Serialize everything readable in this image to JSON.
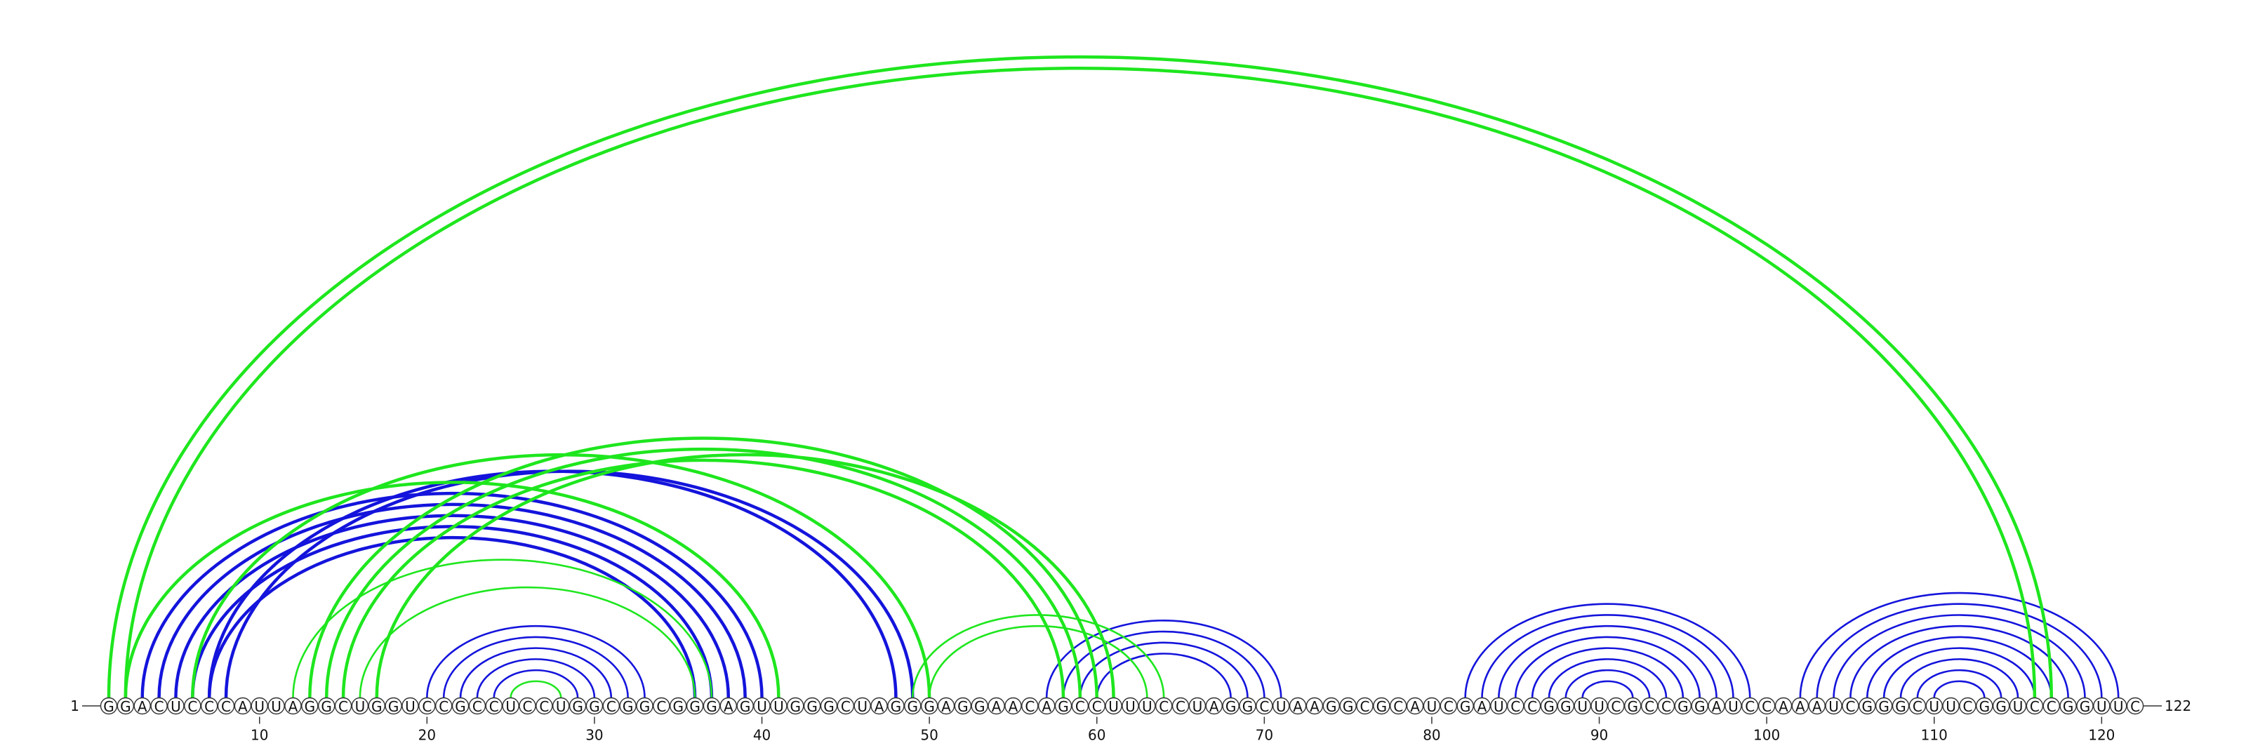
{
  "sequence": [
    "G",
    "G",
    "A",
    "C",
    "U",
    "C",
    "C",
    "C",
    "A",
    "U",
    "U",
    "A",
    "G",
    "G",
    "C",
    "U",
    "G",
    "G",
    "U",
    "C",
    "C",
    "G",
    "C",
    "C",
    "U",
    "C",
    "C",
    "U",
    "G",
    "G",
    "C",
    "G",
    "G",
    "C",
    "G",
    "G",
    "G",
    "A",
    "G",
    "U",
    "U",
    "G",
    "G",
    "G",
    "C",
    "U",
    "A",
    "G",
    "G",
    "G",
    "A",
    "G",
    "G",
    "A",
    "A",
    "C",
    "A",
    "G",
    "C",
    "C",
    "U",
    "U",
    "U",
    "C",
    "C",
    "U",
    "A",
    "G",
    "G",
    "C",
    "U",
    "A",
    "A",
    "G",
    "G",
    "C",
    "G",
    "C",
    "A",
    "U",
    "C",
    "G",
    "A",
    "U",
    "C",
    "C",
    "G",
    "G",
    "U",
    "U",
    "C",
    "G",
    "C",
    "C",
    "G",
    "G",
    "A",
    "U",
    "C",
    "C",
    "A",
    "A",
    "A",
    "U",
    "C",
    "G",
    "G",
    "G",
    "C",
    "U",
    "U",
    "C",
    "G",
    "G",
    "U",
    "C",
    "C",
    "G",
    "G",
    "U",
    "U",
    "C"
  ],
  "start": 1,
  "end": 122,
  "ticks": [
    10,
    20,
    30,
    40,
    50,
    60,
    70,
    80,
    90,
    100,
    110,
    120
  ],
  "arcs": [
    {
      "color": "#1414dc",
      "pairs": [
        [
          3,
          40
        ],
        [
          4,
          39
        ],
        [
          5,
          38
        ],
        [
          6,
          37
        ],
        [
          7,
          36
        ],
        [
          7,
          48
        ],
        [
          8,
          49
        ],
        [
          20,
          33
        ],
        [
          21,
          32
        ],
        [
          22,
          31
        ],
        [
          23,
          30
        ],
        [
          24,
          29
        ],
        [
          57,
          71
        ],
        [
          58,
          70
        ],
        [
          59,
          69
        ],
        [
          60,
          68
        ],
        [
          82,
          99
        ],
        [
          83,
          98
        ],
        [
          84,
          97
        ],
        [
          85,
          96
        ],
        [
          86,
          95
        ],
        [
          87,
          94
        ],
        [
          88,
          93
        ],
        [
          89,
          92
        ],
        [
          102,
          121
        ],
        [
          103,
          120
        ],
        [
          104,
          119
        ],
        [
          105,
          118
        ],
        [
          106,
          117
        ],
        [
          107,
          116
        ],
        [
          108,
          115
        ],
        [
          109,
          114
        ],
        [
          110,
          113
        ]
      ]
    },
    {
      "color": "#1ee61e",
      "pairs": [
        [
          1,
          117
        ],
        [
          2,
          116
        ],
        [
          2,
          41
        ],
        [
          6,
          50
        ],
        [
          12,
          37
        ],
        [
          16,
          36
        ],
        [
          13,
          60
        ],
        [
          14,
          59
        ],
        [
          15,
          58
        ],
        [
          17,
          61
        ],
        [
          49,
          64
        ],
        [
          50,
          63
        ],
        [
          25,
          28
        ]
      ]
    }
  ]
}
